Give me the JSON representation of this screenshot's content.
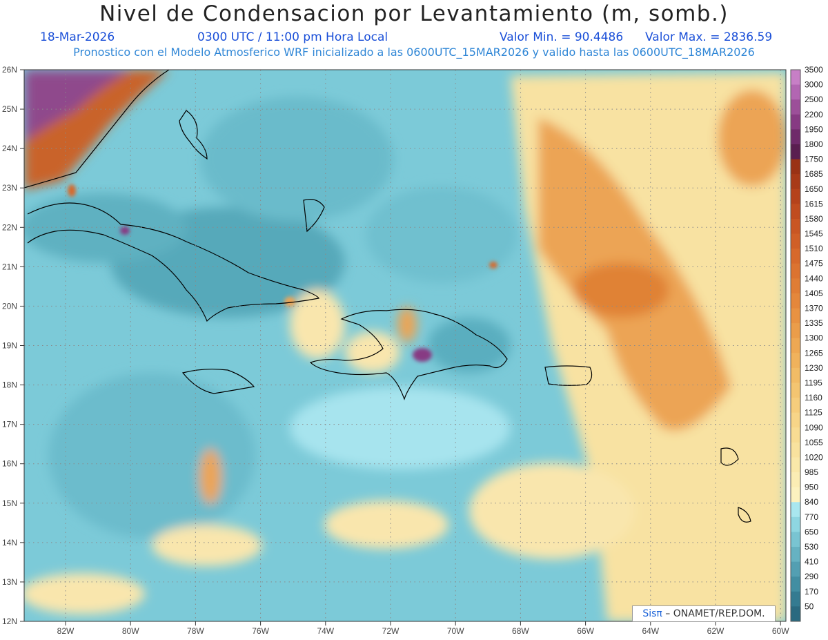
{
  "header": {
    "title": "Nivel de Condensacion por Levantamiento (m, somb.)",
    "date": "18-Mar-2026",
    "time": "0300 UTC / 11:00 pm Hora Local",
    "min_label": "Valor Min. = 90.4486",
    "max_label": "Valor Max. = 2836.59",
    "subtitle": "Pronostico con el Modelo Atmosferico WRF inicializado a las 0600UTC_15MAR2026 y valido hasta las  0600UTC_18MAR2026"
  },
  "axes": {
    "lat_labels": [
      "26N",
      "25N",
      "24N",
      "23N",
      "22N",
      "21N",
      "20N",
      "19N",
      "18N",
      "17N",
      "16N",
      "15N",
      "14N",
      "13N",
      "12N"
    ],
    "lon_labels": [
      "82W",
      "80W",
      "78W",
      "76W",
      "74W",
      "72W",
      "70W",
      "68W",
      "66W",
      "64W",
      "62W",
      "60W"
    ]
  },
  "colorbar": {
    "levels": [
      "3500",
      "3000",
      "2500",
      "2200",
      "1950",
      "1800",
      "1750",
      "1685",
      "1650",
      "1615",
      "1580",
      "1545",
      "1510",
      "1475",
      "1440",
      "1405",
      "1370",
      "1335",
      "1300",
      "1265",
      "1230",
      "1195",
      "1160",
      "1125",
      "1090",
      "1055",
      "1020",
      "985",
      "950",
      "840",
      "770",
      "650",
      "530",
      "410",
      "290",
      "170",
      "50"
    ],
    "colors": [
      "#c77fc6",
      "#b266b2",
      "#9c4f99",
      "#873a83",
      "#6f2a6a",
      "#5a1e50",
      "#9a3215",
      "#a83a18",
      "#b5421b",
      "#c04c1f",
      "#c95623",
      "#d05f27",
      "#d7692b",
      "#dc7330",
      "#e07d35",
      "#e4873b",
      "#e89242",
      "#eb9d4a",
      "#eea853",
      "#f0b25c",
      "#f2bc66",
      "#f4c571",
      "#f6cd7c",
      "#f7d588",
      "#f8dc93",
      "#f9e29e",
      "#fae8a9",
      "#fbedb4",
      "#fcf2bf",
      "#a9e7ef",
      "#8ed6e1",
      "#79c4d2",
      "#66b2c2",
      "#539fb2",
      "#428ea2",
      "#347b91",
      "#2a6a80"
    ]
  },
  "credit": {
    "logo": "Sisπ",
    "text": "ONAMET/REP.DOM."
  }
}
